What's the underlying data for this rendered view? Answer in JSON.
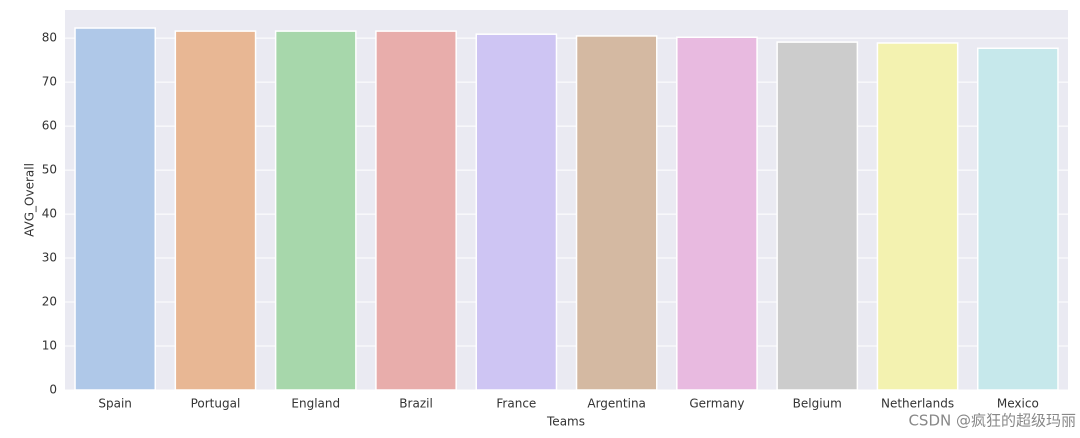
{
  "chart_data": {
    "type": "bar",
    "x_label": "Teams",
    "y_label": "AVG_Overall",
    "categories": [
      "Spain",
      "Portugal",
      "England",
      "Brazil",
      "France",
      "Argentina",
      "Germany",
      "Belgium",
      "Netherlands",
      "Mexico"
    ],
    "values": [
      82.3,
      81.6,
      81.6,
      81.6,
      80.9,
      80.5,
      80.2,
      79.1,
      78.9,
      77.7
    ],
    "colors": [
      "#afc8e8",
      "#e8b794",
      "#a7d7ab",
      "#e8adab",
      "#cec5f3",
      "#d4b9a2",
      "#e8bae0",
      "#cccccc",
      "#f3f2b0",
      "#c6e8eb"
    ],
    "ylim": [
      0,
      86.4
    ],
    "yticks": [
      0,
      10,
      20,
      30,
      40,
      50,
      60,
      70,
      80
    ],
    "grid": true,
    "watermark": "CSDN @疯狂的超级玛丽"
  }
}
